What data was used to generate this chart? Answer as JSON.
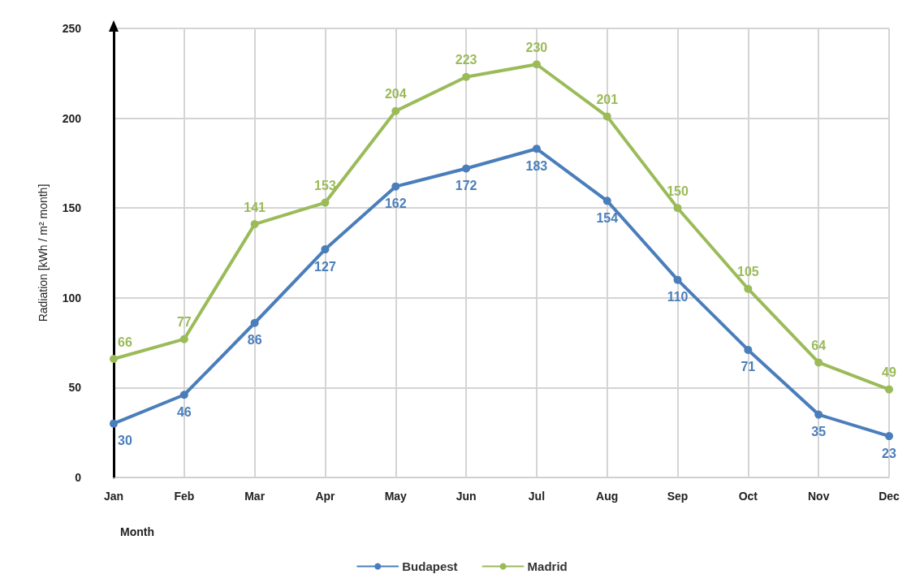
{
  "chart_data": {
    "type": "line",
    "xlabel": "Month",
    "ylabel": "Radiation [kWh / m² month]",
    "categories": [
      "Jan",
      "Feb",
      "Mar",
      "Apr",
      "May",
      "Jun",
      "Jul",
      "Aug",
      "Sep",
      "Oct",
      "Nov",
      "Dec"
    ],
    "series": [
      {
        "name": "Budapest",
        "color": "#4a7ebb",
        "values": [
          30,
          46,
          86,
          127,
          162,
          172,
          183,
          154,
          110,
          71,
          35,
          23
        ]
      },
      {
        "name": "Madrid",
        "color": "#9bbb59",
        "values": [
          66,
          77,
          141,
          153,
          204,
          223,
          230,
          201,
          150,
          105,
          64,
          49
        ]
      }
    ],
    "ylim": [
      0,
      250
    ],
    "yticks": [
      0,
      50,
      100,
      150,
      200,
      250
    ],
    "grid": true,
    "legend": "bottom",
    "marker": "circle",
    "line_style": "solid",
    "data_labels": true
  }
}
